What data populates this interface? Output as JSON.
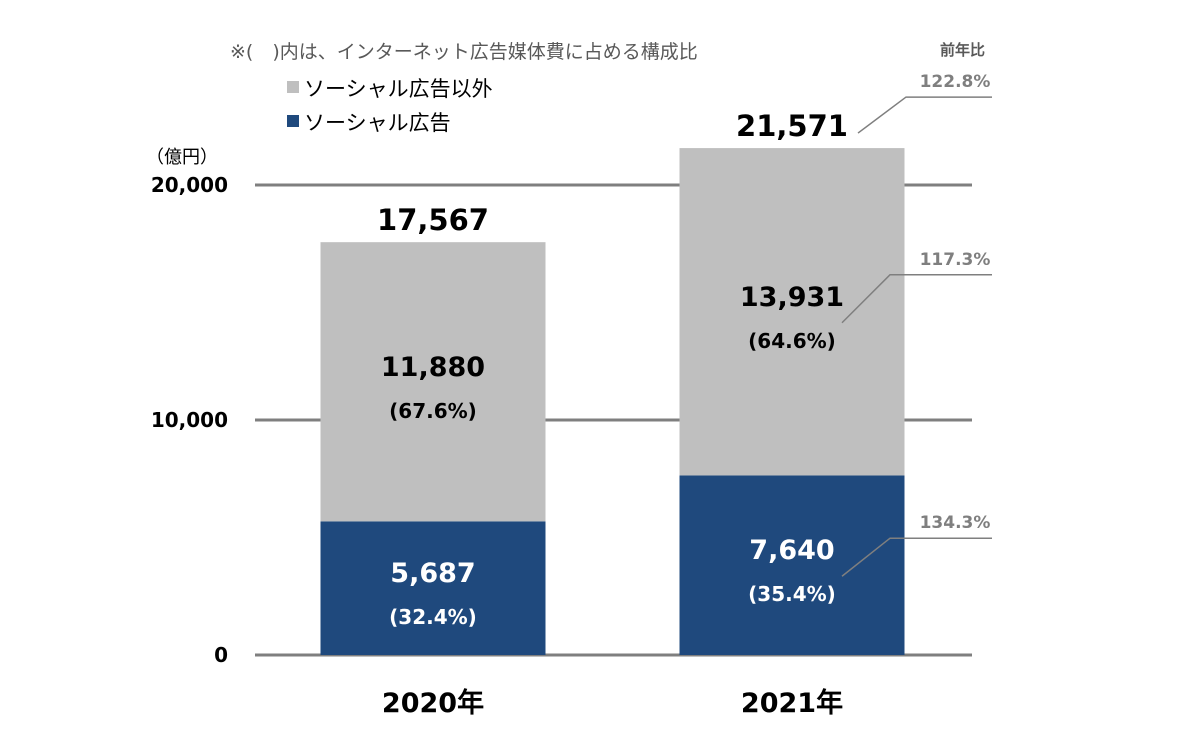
{
  "note": "※(　)内は、インターネット広告媒体費に占める構成比",
  "unit_label": "（億円）",
  "yoy_header": "前年比",
  "colors": {
    "social": "#1f497d",
    "other": "#bfbfbf",
    "gridline": "#7f7f7f",
    "connector": "#7f7f7f"
  },
  "chart_data": {
    "type": "bar",
    "stacked": true,
    "categories": [
      "2020年",
      "2021年"
    ],
    "ylim": [
      0,
      20000
    ],
    "yticks": [
      {
        "value": 0,
        "label": "0"
      },
      {
        "value": 10000,
        "label": "10,000"
      },
      {
        "value": 20000,
        "label": "20,000"
      }
    ],
    "grid": true,
    "legend_position": "top-left",
    "series": [
      {
        "name": "ソーシャル広告",
        "values": [
          5687,
          7640
        ],
        "value_labels": [
          "5,687",
          "7,640"
        ],
        "share_labels": [
          "(32.4%)",
          "(35.4%)"
        ],
        "color": "#1f497d",
        "text_color": "#ffffff",
        "yoy": "134.3%"
      },
      {
        "name": "ソーシャル広告以外",
        "values": [
          11880,
          13931
        ],
        "value_labels": [
          "11,880",
          "13,931"
        ],
        "share_labels": [
          "(67.6%)",
          "(64.6%)"
        ],
        "color": "#bfbfbf",
        "text_color": "#000000",
        "yoy": "117.3%"
      }
    ],
    "totals": [
      17567,
      21571
    ],
    "total_labels": [
      "17,567",
      "21,571"
    ],
    "total_yoy": "122.8%"
  }
}
